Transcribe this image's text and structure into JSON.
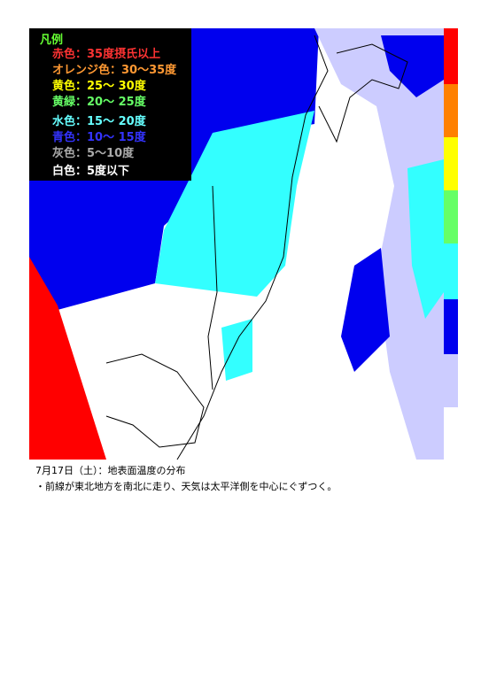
{
  "legend": {
    "title": "凡例",
    "items": [
      {
        "label": "赤色：35度摂氏以上",
        "color": "#ff3333"
      },
      {
        "label": "オレンジ色：30～35度",
        "color": "#ff9933"
      },
      {
        "label": "黄色：25～ 30度",
        "color": "#ffff00"
      },
      {
        "label": "黄緑：20～ 25度",
        "color": "#66ff66"
      },
      {
        "label": "水色：15～ 20度",
        "color": "#66ffff"
      },
      {
        "label": "青色：10～ 15度",
        "color": "#3333ff"
      },
      {
        "label": "灰色：5～10度",
        "color": "#aaaaaa"
      },
      {
        "label": "白色：5度以下",
        "color": "#ffffff"
      }
    ]
  },
  "caption": {
    "date_line": "7月17日（土）：地表面温度の分布",
    "note": "・前線が東北地方を南北に走り、天気は太平洋側を中心にぐずつく。"
  }
}
